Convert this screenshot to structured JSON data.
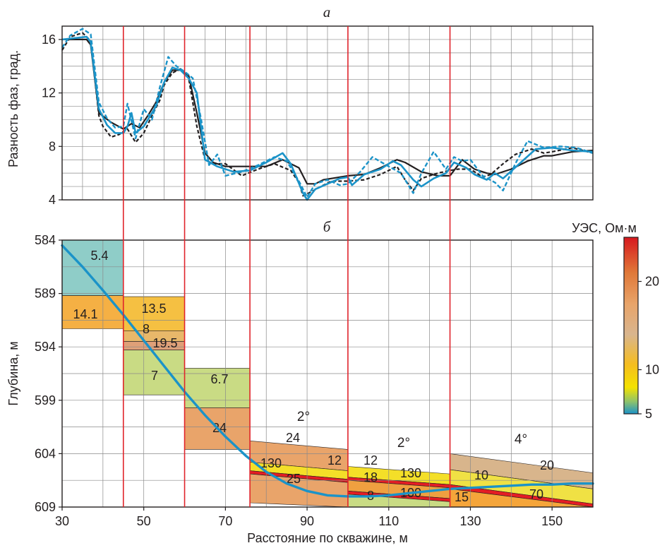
{
  "top_panel": {
    "title": "а",
    "ylabel": "Разность фаз, град.",
    "yticks": [
      "4",
      "8",
      "12",
      "16"
    ]
  },
  "bottom_panel": {
    "title": "б",
    "ylabel": "Глубина, м",
    "xlabel": "Расстояние по скважине, м",
    "yticks": [
      "584",
      "589",
      "594",
      "599",
      "604",
      "609"
    ],
    "xticks": [
      "30",
      "50",
      "70",
      "90",
      "110",
      "130",
      "150"
    ],
    "colorbar": {
      "label": "УЭС, Ом·м",
      "ticks": [
        "5",
        "10",
        "20"
      ]
    },
    "dip_labels": [
      "2°",
      "2°",
      "4°"
    ]
  },
  "colors": {
    "segment_line": "#e0242b",
    "well_path": "#1b93c8",
    "curve_black": "#231f20",
    "curve_blue": "#1b93c8",
    "grid": "#8a8a8a"
  },
  "chart_data": [
    {
      "type": "line",
      "title": "а",
      "xlabel": "",
      "ylabel": "Разность фаз, град.",
      "xlim": [
        30,
        160
      ],
      "ylim": [
        4,
        17
      ],
      "segment_boundaries_x": [
        45,
        60,
        76,
        100,
        125
      ],
      "series": [
        {
          "style": "solid-black",
          "x": [
            30,
            36,
            37,
            39,
            42,
            45,
            47,
            49,
            51,
            53,
            55,
            57,
            59,
            61,
            63,
            65,
            67,
            70,
            74,
            80,
            84,
            88,
            90,
            92,
            94,
            98,
            100,
            104,
            108,
            112,
            114,
            118,
            122,
            125,
            128,
            131,
            134,
            136,
            140,
            144,
            148,
            150,
            155,
            160
          ],
          "y": [
            16.0,
            16.0,
            15.6,
            10.5,
            9.8,
            9.3,
            9.7,
            9.4,
            10.3,
            11.3,
            12.8,
            13.7,
            13.7,
            13.3,
            10.5,
            7.5,
            6.8,
            6.5,
            6.5,
            6.5,
            7.0,
            6.4,
            5.2,
            5.2,
            5.5,
            5.7,
            5.8,
            5.9,
            6.4,
            7.0,
            6.8,
            6.1,
            5.8,
            5.8,
            7.0,
            6.3,
            6.0,
            5.9,
            6.3,
            6.9,
            7.3,
            7.3,
            7.6,
            7.7
          ]
        },
        {
          "style": "dashed-black",
          "x": [
            30,
            32,
            35,
            37,
            39,
            40,
            42,
            44,
            46,
            48,
            50,
            52,
            54,
            55,
            57,
            59,
            61,
            63,
            65,
            67,
            70,
            74,
            78,
            82,
            86,
            88,
            89,
            91,
            94,
            96,
            100,
            104,
            108,
            112,
            114,
            116,
            118,
            122,
            125,
            127,
            130,
            133,
            135,
            138,
            141,
            145,
            148,
            150,
            155,
            160
          ],
          "y": [
            15.2,
            16.2,
            16.5,
            15.9,
            10.3,
            9.5,
            8.7,
            8.9,
            9.3,
            8.3,
            9.0,
            10.3,
            11.5,
            12.6,
            13.5,
            13.8,
            13.1,
            9.5,
            7.0,
            6.7,
            6.7,
            5.8,
            6.3,
            6.7,
            6.2,
            5.3,
            4.3,
            4.6,
            5.1,
            5.4,
            5.4,
            5.5,
            5.9,
            6.5,
            5.5,
            4.7,
            5.6,
            6.0,
            6.2,
            6.3,
            6.3,
            5.7,
            5.9,
            6.7,
            7.4,
            7.8,
            7.5,
            7.6,
            7.9,
            7.5
          ]
        },
        {
          "style": "solid-blue",
          "x": [
            30,
            33,
            36,
            37,
            39,
            41,
            43,
            45,
            46,
            47,
            48,
            50,
            53,
            55,
            57,
            59,
            61,
            63,
            65,
            68,
            72,
            76,
            80,
            84,
            86,
            89,
            90,
            92,
            95,
            98,
            100,
            101,
            104,
            108,
            111,
            113,
            116,
            118,
            121,
            124,
            126,
            129,
            131,
            134,
            136,
            138,
            142,
            146,
            150,
            155,
            160
          ],
          "y": [
            16.0,
            16.1,
            16.2,
            15.8,
            10.8,
            9.6,
            9.0,
            9.0,
            9.5,
            10.5,
            9.0,
            9.5,
            11.0,
            12.8,
            13.9,
            13.7,
            13.1,
            12.0,
            7.0,
            6.5,
            6.1,
            6.2,
            6.8,
            7.5,
            6.7,
            4.5,
            4.0,
            4.8,
            5.2,
            5.6,
            5.7,
            5.1,
            5.9,
            6.3,
            6.9,
            6.6,
            5.5,
            5.0,
            5.6,
            6.0,
            6.8,
            6.4,
            5.9,
            5.5,
            6.0,
            5.6,
            6.7,
            7.8,
            7.9,
            7.7,
            7.6
          ]
        },
        {
          "style": "dashed-blue",
          "x": [
            30,
            32,
            35,
            37,
            39,
            41,
            43,
            45,
            46,
            48,
            50,
            52,
            54,
            56,
            58,
            60,
            62,
            64,
            66,
            68,
            70,
            74,
            78,
            82,
            85,
            88,
            90,
            92,
            95,
            98,
            100,
            103,
            106,
            110,
            113,
            116,
            118,
            121,
            124,
            126,
            128,
            130,
            133,
            136,
            138,
            141,
            144,
            148,
            152,
            156,
            160
          ],
          "y": [
            15.4,
            16.3,
            16.8,
            16.4,
            11.3,
            10.1,
            9.4,
            9.5,
            11.2,
            8.6,
            10.8,
            10.0,
            12.5,
            14.7,
            14.0,
            13.6,
            13.1,
            10.1,
            6.6,
            7.4,
            5.8,
            6.1,
            6.6,
            7.2,
            6.9,
            5.4,
            4.2,
            5.2,
            5.5,
            5.1,
            5.2,
            6.1,
            7.2,
            6.5,
            6.0,
            4.5,
            6.0,
            7.6,
            6.3,
            7.2,
            6.9,
            7.0,
            5.8,
            5.3,
            4.7,
            6.7,
            8.4,
            7.9,
            8.0,
            7.9,
            7.5
          ]
        }
      ]
    },
    {
      "type": "heatmap",
      "title": "б",
      "xlabel": "Расстояние по скважине, м",
      "ylabel": "Глубина, м",
      "xlim": [
        30,
        160
      ],
      "ylim": [
        609,
        584
      ],
      "colorbar_range_ohm_m": [
        5,
        25
      ],
      "well_path": {
        "x": [
          30,
          35,
          40,
          45,
          50,
          55,
          60,
          65,
          70,
          75,
          80,
          85,
          90,
          95,
          100,
          105,
          110,
          115,
          120,
          125,
          130,
          135,
          140,
          145,
          150,
          155,
          160
        ],
        "y": [
          584.5,
          586.5,
          588.7,
          591.0,
          593.4,
          595.8,
          598.2,
          600.4,
          602.4,
          604.2,
          605.7,
          606.8,
          607.5,
          607.9,
          608.0,
          608.0,
          607.9,
          607.7,
          607.5,
          607.3,
          607.2,
          607.1,
          607.0,
          606.9,
          606.9,
          606.8,
          606.8
        ]
      },
      "layers": [
        {
          "label": "5.4",
          "x": [
            30,
            45
          ],
          "top": 584.0,
          "bottom": 589.2
        },
        {
          "label": "14.1",
          "x": [
            30,
            45
          ],
          "top": 589.2,
          "bottom": 592.3
        },
        {
          "label": "13.5",
          "x": [
            45,
            60
          ],
          "top": 589.3,
          "bottom": 592.5
        },
        {
          "label": "8",
          "x": [
            45,
            60
          ],
          "top": 592.5,
          "bottom": 593.5
        },
        {
          "label": "19.5",
          "x": [
            45,
            60
          ],
          "top": 593.5,
          "bottom": 594.3
        },
        {
          "label": "7",
          "x": [
            45,
            60
          ],
          "top": 594.3,
          "bottom": 598.5
        },
        {
          "label": "6.7",
          "x": [
            60,
            76
          ],
          "top": 596.0,
          "bottom": 599.7
        },
        {
          "label": "24",
          "x": [
            60,
            76
          ],
          "top": 599.7,
          "bottom": 603.6
        },
        {
          "label": "24",
          "x": [
            76,
            100
          ],
          "top": [
            602.8,
            603.6
          ],
          "bottom": [
            604.8,
            605.6
          ]
        },
        {
          "label": "12",
          "x": [
            76,
            100
          ],
          "top": [
            604.8,
            605.6
          ],
          "bottom": [
            605.6,
            606.4
          ]
        },
        {
          "label": "130",
          "x": [
            76,
            100
          ],
          "top": [
            605.6,
            606.4
          ],
          "bottom": [
            605.9,
            606.7
          ]
        },
        {
          "label": "25",
          "x": [
            76,
            100
          ],
          "top": [
            605.9,
            606.7
          ],
          "bottom": [
            608.6,
            609.0
          ]
        },
        {
          "label": "12",
          "x": [
            100,
            125
          ],
          "top": [
            605.2,
            605.9
          ],
          "bottom": [
            606.2,
            606.9
          ]
        },
        {
          "label": "130",
          "x": [
            100,
            125
          ],
          "top": [
            606.2,
            606.9
          ],
          "bottom": [
            606.5,
            607.2
          ]
        },
        {
          "label": "18",
          "x": [
            100,
            125
          ],
          "top": [
            606.5,
            607.2
          ],
          "bottom": [
            607.5,
            608.2
          ]
        },
        {
          "label": "100",
          "x": [
            100,
            125
          ],
          "top": [
            607.5,
            608.2
          ],
          "bottom": [
            607.8,
            608.5
          ]
        },
        {
          "label": "8",
          "x": [
            100,
            125
          ],
          "top": [
            607.8,
            608.5
          ],
          "bottom": [
            609.0,
            609.0
          ]
        },
        {
          "label": "20",
          "x": [
            125,
            160
          ],
          "top": [
            604.0,
            605.8
          ],
          "bottom": [
            605.5,
            607.3
          ]
        },
        {
          "label": "10",
          "x": [
            125,
            160
          ],
          "top": [
            605.5,
            607.3
          ],
          "bottom": [
            606.9,
            608.7
          ]
        },
        {
          "label": "70",
          "x": [
            125,
            160
          ],
          "top": [
            606.9,
            608.7
          ],
          "bottom": [
            607.3,
            609.0
          ]
        },
        {
          "label": "15",
          "x": [
            125,
            160
          ],
          "top": [
            607.3,
            609.0
          ],
          "bottom": [
            609.0,
            609.0
          ]
        }
      ]
    }
  ]
}
